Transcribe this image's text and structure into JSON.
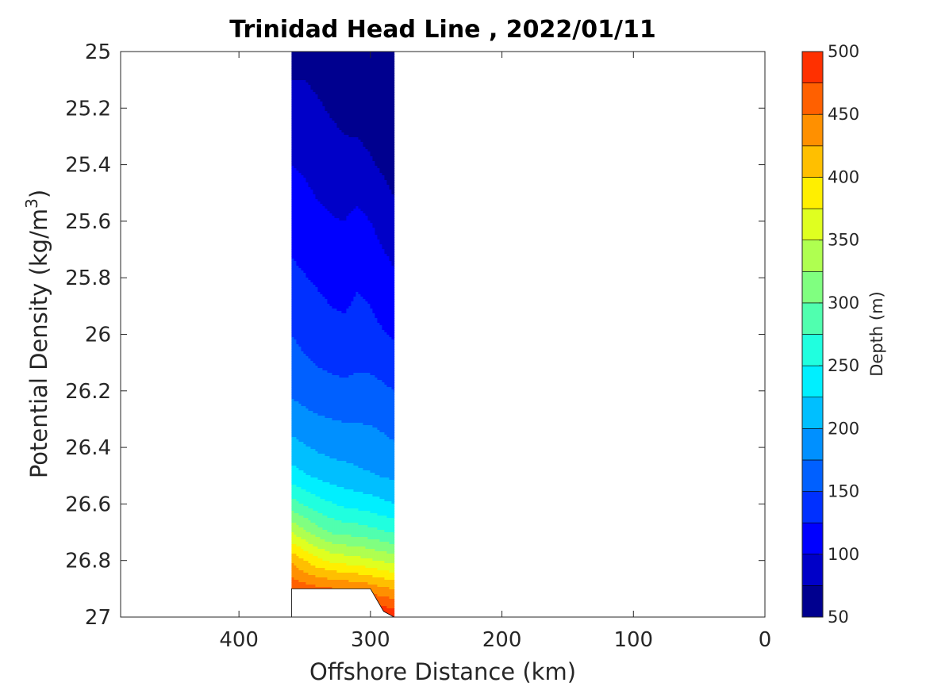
{
  "chart_data": {
    "type": "contour",
    "title": "Trinidad Head Line , 2022/01/11",
    "xlabel": "Offshore Distance (km)",
    "ylabel_prefix": "Potential Density (kg/m",
    "ylabel_sup": "3",
    "ylabel_suffix": ")",
    "xlim": [
      490,
      0
    ],
    "ylim": [
      25,
      27
    ],
    "x_ticks": [
      {
        "value": 400,
        "label": "400"
      },
      {
        "value": 300,
        "label": "300"
      },
      {
        "value": 200,
        "label": "200"
      },
      {
        "value": 100,
        "label": "100"
      },
      {
        "value": 0,
        "label": "0"
      }
    ],
    "y_ticks": [
      {
        "value": 25,
        "label": "25"
      },
      {
        "value": 25.2,
        "label": "25.2"
      },
      {
        "value": 25.4,
        "label": "25.4"
      },
      {
        "value": 25.6,
        "label": "25.6"
      },
      {
        "value": 25.8,
        "label": "25.8"
      },
      {
        "value": 26,
        "label": "26"
      },
      {
        "value": 26.2,
        "label": "26.2"
      },
      {
        "value": 26.4,
        "label": "26.4"
      },
      {
        "value": 26.6,
        "label": "26.6"
      },
      {
        "value": 26.8,
        "label": "26.8"
      },
      {
        "value": 27,
        "label": "27"
      }
    ],
    "colorbar": {
      "label": "Depth (m)",
      "min": 50,
      "max": 500,
      "ticks": [
        {
          "value": 50,
          "label": "50"
        },
        {
          "value": 100,
          "label": "100"
        },
        {
          "value": 150,
          "label": "150"
        },
        {
          "value": 200,
          "label": "200"
        },
        {
          "value": 250,
          "label": "250"
        },
        {
          "value": 300,
          "label": "300"
        },
        {
          "value": 350,
          "label": "350"
        },
        {
          "value": 400,
          "label": "400"
        },
        {
          "value": 450,
          "label": "450"
        },
        {
          "value": 500,
          "label": "500"
        }
      ],
      "levels": [
        50,
        75,
        100,
        125,
        150,
        175,
        200,
        225,
        250,
        275,
        300,
        325,
        350,
        375,
        400,
        425,
        450,
        475,
        500
      ],
      "colors": [
        "#00008f",
        "#0000c8",
        "#0000ff",
        "#0030ff",
        "#0060ff",
        "#0090ff",
        "#00bfff",
        "#00efff",
        "#20ffdf",
        "#50ffaf",
        "#80ff80",
        "#afff50",
        "#dfff20",
        "#ffef00",
        "#ffbf00",
        "#ff9000",
        "#ff6000",
        "#ff3000",
        "#e00000",
        "#a80000"
      ]
    },
    "profiles": {
      "x": [
        360,
        350,
        340,
        330,
        320,
        310,
        300,
        290,
        282
      ],
      "bottom_density": [
        26.9,
        26.9,
        26.9,
        26.9,
        26.9,
        26.9,
        26.9,
        26.98,
        27.0
      ],
      "depth_rows": [
        {
          "density": 25.0,
          "depth": [
            68,
            70,
            67,
            64,
            60,
            57,
            55,
            52,
            50
          ]
        },
        {
          "density": 25.2,
          "depth": [
            82,
            80,
            77,
            73,
            69,
            65,
            62,
            58,
            56
          ]
        },
        {
          "density": 25.4,
          "depth": [
            100,
            96,
            90,
            85,
            82,
            84,
            78,
            71,
            66
          ]
        },
        {
          "density": 25.6,
          "depth": [
            116,
            112,
            106,
            102,
            100,
            106,
            100,
            90,
            82
          ]
        },
        {
          "density": 25.8,
          "depth": [
            130,
            126,
            122,
            118,
            116,
            122,
            118,
            110,
            104
          ]
        },
        {
          "density": 26.0,
          "depth": [
            150,
            142,
            136,
            132,
            130,
            134,
            132,
            126,
            122
          ]
        },
        {
          "density": 26.2,
          "depth": [
            170,
            164,
            160,
            158,
            156,
            158,
            158,
            154,
            150
          ]
        },
        {
          "density": 26.4,
          "depth": [
            208,
            202,
            196,
            192,
            190,
            188,
            186,
            182,
            178
          ]
        },
        {
          "density": 26.5,
          "depth": [
            236,
            228,
            220,
            214,
            210,
            206,
            202,
            198,
            195
          ]
        },
        {
          "density": 26.6,
          "depth": [
            286,
            272,
            260,
            252,
            244,
            240,
            236,
            230,
            226
          ]
        },
        {
          "density": 26.7,
          "depth": [
            350,
            330,
            312,
            298,
            292,
            290,
            284,
            278,
            272
          ]
        },
        {
          "density": 26.8,
          "depth": [
            420,
            400,
            382,
            370,
            364,
            360,
            354,
            346,
            340
          ]
        },
        {
          "density": 26.9,
          "depth": [
            470,
            462,
            456,
            452,
            450,
            446,
            440,
            430,
            424
          ]
        },
        {
          "density": 27.0,
          "depth": [
            500,
            500,
            500,
            500,
            500,
            500,
            500,
            500,
            500
          ]
        }
      ]
    }
  }
}
